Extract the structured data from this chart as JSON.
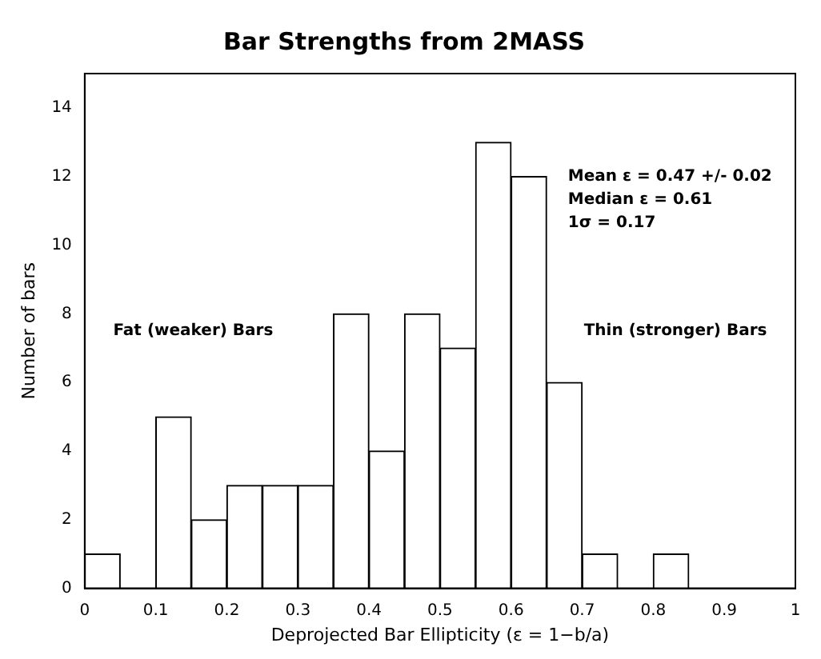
{
  "chart_data": {
    "type": "histogram",
    "title": "Bar Strengths from 2MASS",
    "xlabel": "Deprojected Bar Ellipticity (ε = 1−b/a)",
    "ylabel": "Number of bars",
    "bins": [
      0,
      0.05,
      0.1,
      0.15,
      0.2,
      0.25,
      0.3,
      0.35,
      0.4,
      0.45,
      0.5,
      0.55,
      0.6,
      0.65,
      0.7,
      0.75,
      0.8,
      0.85,
      0.9,
      0.95,
      1
    ],
    "values": [
      1,
      0,
      5,
      2,
      3,
      3,
      3,
      8,
      4,
      8,
      7,
      13,
      12,
      6,
      1,
      0,
      1,
      0,
      0,
      0
    ],
    "color": "#ffffff",
    "xlim": [
      0,
      1
    ],
    "xticks": [
      0,
      0.1,
      0.2,
      0.3,
      0.4,
      0.5,
      0.6,
      0.7,
      0.8,
      0.9,
      1
    ],
    "ylim": [
      0,
      15
    ],
    "yticks": [
      0,
      2,
      4,
      6,
      8,
      10,
      12,
      14
    ],
    "grid": false,
    "legend": false,
    "annotations": [
      "Mean ε = 0.47 +/- 0.02",
      "Median ε = 0.61",
      "1σ = 0.17",
      "Fat (weaker) Bars",
      "Thin (stronger) Bars"
    ]
  }
}
